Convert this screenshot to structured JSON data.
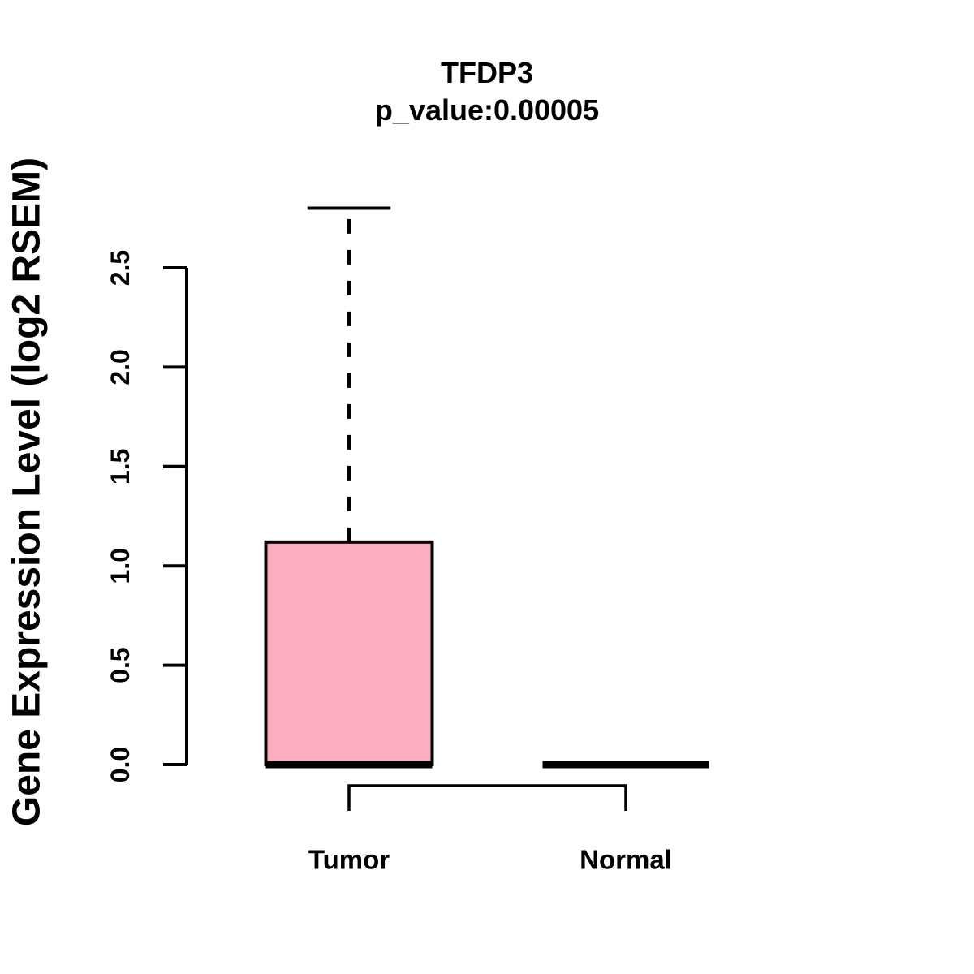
{
  "header": {
    "title": "TFDP3",
    "subtitle": "p_value:0.00005"
  },
  "axes": {
    "y_label": "Gene Expression Level (log2 RSEM)"
  },
  "colors": {
    "box_fill": "#FCAEC0",
    "line": "#000000",
    "background": "#FFFFFF"
  },
  "chart_data": {
    "type": "boxplot",
    "title": "TFDP3",
    "subtitle": "p_value:0.00005",
    "ylabel": "Gene Expression Level (log2 RSEM)",
    "xlabel": "",
    "categories": [
      "Tumor",
      "Normal"
    ],
    "yticks": [
      0.0,
      0.5,
      1.0,
      1.5,
      2.0,
      2.5
    ],
    "ytick_labels": [
      "0.0",
      "0.5",
      "1.0",
      "1.5",
      "2.0",
      "2.5"
    ],
    "ylim": [
      0,
      2.5
    ],
    "grid": "off",
    "legend": "none",
    "series": [
      {
        "name": "Tumor",
        "whisker_low": 0.0,
        "q1": 0.0,
        "median": 0.0,
        "q3": 1.12,
        "whisker_high": 2.8,
        "fill": "#FCAEC0"
      },
      {
        "name": "Normal",
        "whisker_low": 0.0,
        "q1": 0.0,
        "median": 0.0,
        "q3": 0.0,
        "whisker_high": 0.0,
        "fill": "#FCAEC0"
      }
    ],
    "comparison_bracket": {
      "from": "Tumor",
      "to": "Normal"
    }
  }
}
